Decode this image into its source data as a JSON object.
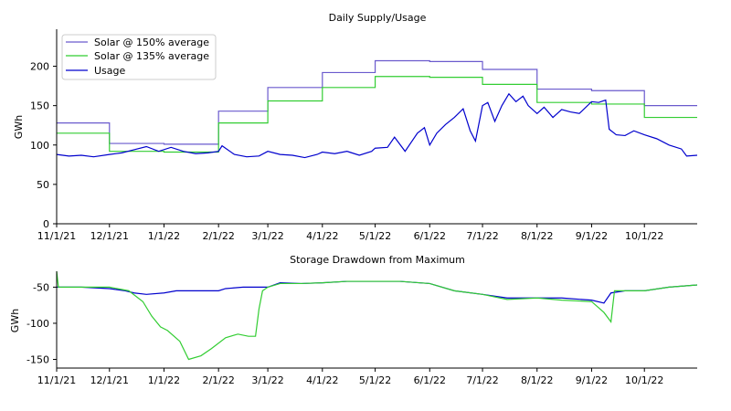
{
  "chart_data": [
    {
      "type": "line",
      "title": "Daily Supply/Usage",
      "xlabel": "",
      "ylabel": "GWh",
      "ylim": [
        0,
        247
      ],
      "x_ticks": [
        "11/1/21",
        "12/1/21",
        "1/1/22",
        "2/1/22",
        "3/1/22",
        "4/1/22",
        "5/1/22",
        "6/1/22",
        "7/1/22",
        "8/1/22",
        "9/1/22",
        "10/1/22"
      ],
      "y_ticks": [
        0,
        50,
        100,
        150,
        200
      ],
      "legend": "top-left",
      "grid": false,
      "series": [
        {
          "name": "Solar @ 150% average",
          "color": "#6a5acd",
          "step_points": [
            [
              "11/1/21",
              128
            ],
            [
              "12/1/21",
              102
            ],
            [
              "1/1/22",
              101
            ],
            [
              "2/1/22",
              143
            ],
            [
              "3/1/22",
              173
            ],
            [
              "4/1/22",
              192
            ],
            [
              "5/1/22",
              207
            ],
            [
              "6/1/22",
              206
            ],
            [
              "7/1/22",
              196
            ],
            [
              "8/1/22",
              171
            ],
            [
              "9/1/22",
              169
            ],
            [
              "10/1/22",
              150
            ],
            [
              "10/31/22",
              150
            ]
          ]
        },
        {
          "name": "Solar @ 135% average",
          "color": "#32cd32",
          "step_points": [
            [
              "11/1/21",
              115
            ],
            [
              "12/1/21",
              92
            ],
            [
              "1/1/22",
              91
            ],
            [
              "2/1/22",
              128
            ],
            [
              "3/1/22",
              156
            ],
            [
              "4/1/22",
              173
            ],
            [
              "5/1/22",
              187
            ],
            [
              "6/1/22",
              186
            ],
            [
              "7/1/22",
              177
            ],
            [
              "8/1/22",
              154
            ],
            [
              "9/1/22",
              152
            ],
            [
              "10/1/22",
              135
            ],
            [
              "10/31/22",
              135
            ]
          ]
        },
        {
          "name": "Usage",
          "color": "#0000cd",
          "points": [
            [
              "11/1/21",
              88
            ],
            [
              "11/8/21",
              86
            ],
            [
              "11/15/21",
              87
            ],
            [
              "11/22/21",
              85
            ],
            [
              "12/1/21",
              88
            ],
            [
              "12/8/21",
              90
            ],
            [
              "12/15/21",
              94
            ],
            [
              "12/22/21",
              98
            ],
            [
              "12/29/21",
              92
            ],
            [
              "1/5/22",
              97
            ],
            [
              "1/12/22",
              92
            ],
            [
              "1/19/22",
              89
            ],
            [
              "1/26/22",
              90
            ],
            [
              "2/1/22",
              92
            ],
            [
              "2/3/22",
              99
            ],
            [
              "2/10/22",
              88
            ],
            [
              "2/17/22",
              85
            ],
            [
              "2/24/22",
              86
            ],
            [
              "3/1/22",
              92
            ],
            [
              "3/8/22",
              88
            ],
            [
              "3/15/22",
              87
            ],
            [
              "3/22/22",
              84
            ],
            [
              "3/29/22",
              88
            ],
            [
              "4/1/22",
              91
            ],
            [
              "4/8/22",
              89
            ],
            [
              "4/15/22",
              92
            ],
            [
              "4/22/22",
              87
            ],
            [
              "4/29/22",
              92
            ],
            [
              "5/1/22",
              96
            ],
            [
              "5/8/22",
              97
            ],
            [
              "5/12/22",
              110
            ],
            [
              "5/18/22",
              92
            ],
            [
              "5/25/22",
              115
            ],
            [
              "5/29/22",
              122
            ],
            [
              "6/1/22",
              100
            ],
            [
              "6/5/22",
              115
            ],
            [
              "6/10/22",
              126
            ],
            [
              "6/15/22",
              135
            ],
            [
              "6/20/22",
              146
            ],
            [
              "6/24/22",
              118
            ],
            [
              "6/27/22",
              105
            ],
            [
              "7/1/22",
              150
            ],
            [
              "7/4/22",
              154
            ],
            [
              "7/8/22",
              130
            ],
            [
              "7/12/22",
              150
            ],
            [
              "7/16/22",
              165
            ],
            [
              "7/20/22",
              155
            ],
            [
              "7/24/22",
              162
            ],
            [
              "7/27/22",
              150
            ],
            [
              "8/1/22",
              140
            ],
            [
              "8/5/22",
              148
            ],
            [
              "8/10/22",
              135
            ],
            [
              "8/15/22",
              145
            ],
            [
              "8/20/22",
              142
            ],
            [
              "8/25/22",
              140
            ],
            [
              "9/1/22",
              155
            ],
            [
              "9/5/22",
              154
            ],
            [
              "9/9/22",
              157
            ],
            [
              "9/11/22",
              120
            ],
            [
              "9/15/22",
              113
            ],
            [
              "9/20/22",
              112
            ],
            [
              "9/25/22",
              118
            ],
            [
              "10/1/22",
              113
            ],
            [
              "10/8/22",
              108
            ],
            [
              "10/15/22",
              100
            ],
            [
              "10/22/22",
              95
            ],
            [
              "10/25/22",
              86
            ],
            [
              "10/31/22",
              87
            ]
          ]
        }
      ]
    },
    {
      "type": "line",
      "title": "Storage Drawdown from Maximum",
      "xlabel": "",
      "ylabel": "GWh",
      "ylim": [
        -162,
        -28
      ],
      "x_ticks": [
        "11/1/21",
        "12/1/21",
        "1/1/22",
        "2/1/22",
        "3/1/22",
        "4/1/22",
        "5/1/22",
        "6/1/22",
        "7/1/22",
        "8/1/22",
        "9/1/22",
        "10/1/22"
      ],
      "y_ticks": [
        -50,
        -100,
        -150
      ],
      "grid": false,
      "series": [
        {
          "name": "",
          "color": "#0000cd",
          "points": [
            [
              "11/1/21",
              -50
            ],
            [
              "11/15/21",
              -50
            ],
            [
              "12/1/21",
              -52
            ],
            [
              "12/10/21",
              -55
            ],
            [
              "12/15/21",
              -58
            ],
            [
              "12/22/21",
              -60
            ],
            [
              "1/1/22",
              -58
            ],
            [
              "1/8/22",
              -55
            ],
            [
              "1/15/22",
              -55
            ],
            [
              "1/22/22",
              -55
            ],
            [
              "2/1/22",
              -55
            ],
            [
              "2/5/22",
              -52
            ],
            [
              "2/15/22",
              -50
            ],
            [
              "3/1/22",
              -50
            ],
            [
              "3/8/22",
              -44
            ],
            [
              "3/20/22",
              -45
            ],
            [
              "4/1/22",
              -44
            ],
            [
              "4/15/22",
              -42
            ],
            [
              "5/1/22",
              -42
            ],
            [
              "5/15/22",
              -42
            ],
            [
              "6/1/22",
              -45
            ],
            [
              "6/15/22",
              -55
            ],
            [
              "7/1/22",
              -60
            ],
            [
              "7/15/22",
              -65
            ],
            [
              "8/1/22",
              -65
            ],
            [
              "8/15/22",
              -65
            ],
            [
              "9/1/22",
              -68
            ],
            [
              "9/8/22",
              -72
            ],
            [
              "9/12/22",
              -58
            ],
            [
              "9/20/22",
              -55
            ],
            [
              "10/1/22",
              -55
            ],
            [
              "10/15/22",
              -50
            ],
            [
              "10/31/22",
              -47
            ]
          ]
        },
        {
          "name": "",
          "color": "#32cd32",
          "points": [
            [
              "11/1/21",
              -28
            ],
            [
              "11/2/21",
              -50
            ],
            [
              "11/15/21",
              -50
            ],
            [
              "12/1/21",
              -50
            ],
            [
              "12/12/21",
              -55
            ],
            [
              "12/20/21",
              -70
            ],
            [
              "12/25/21",
              -90
            ],
            [
              "12/30/21",
              -105
            ],
            [
              "1/3/22",
              -110
            ],
            [
              "1/10/22",
              -125
            ],
            [
              "1/15/22",
              -150
            ],
            [
              "1/22/22",
              -145
            ],
            [
              "1/28/22",
              -135
            ],
            [
              "2/5/22",
              -120
            ],
            [
              "2/12/22",
              -115
            ],
            [
              "2/18/22",
              -118
            ],
            [
              "2/22/22",
              -118
            ],
            [
              "2/24/22",
              -80
            ],
            [
              "2/26/22",
              -55
            ],
            [
              "3/1/22",
              -50
            ],
            [
              "3/8/22",
              -45
            ],
            [
              "3/20/22",
              -45
            ],
            [
              "4/1/22",
              -44
            ],
            [
              "4/15/22",
              -42
            ],
            [
              "5/1/22",
              -42
            ],
            [
              "5/15/22",
              -42
            ],
            [
              "6/1/22",
              -45
            ],
            [
              "6/15/22",
              -55
            ],
            [
              "7/1/22",
              -60
            ],
            [
              "7/15/22",
              -67
            ],
            [
              "8/1/22",
              -65
            ],
            [
              "8/15/22",
              -68
            ],
            [
              "9/1/22",
              -70
            ],
            [
              "9/8/22",
              -85
            ],
            [
              "9/12/22",
              -98
            ],
            [
              "9/14/22",
              -55
            ],
            [
              "9/20/22",
              -55
            ],
            [
              "10/1/22",
              -55
            ],
            [
              "10/15/22",
              -50
            ],
            [
              "10/31/22",
              -47
            ]
          ]
        }
      ]
    }
  ]
}
